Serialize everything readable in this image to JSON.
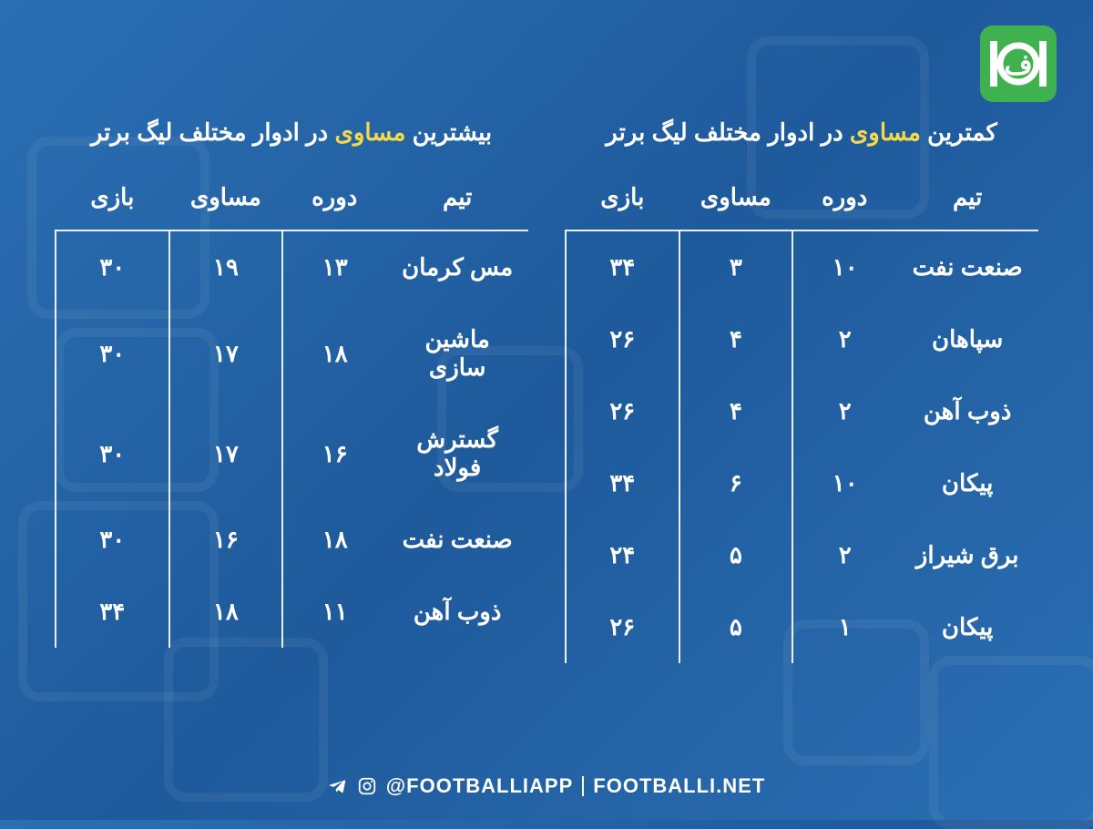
{
  "colors": {
    "background_start": "#2b6fb3",
    "background_end": "#1e5a9c",
    "text": "#ffffff",
    "highlight": "#f3d94a",
    "logo_bg": "#3fb24f",
    "divider": "rgba(255,255,255,0.9)"
  },
  "font": {
    "title_size_pt": 20,
    "header_size_pt": 20,
    "cell_size_pt": 20,
    "footer_size_pt": 16
  },
  "logo": {
    "name": "footballi-logo"
  },
  "left_table": {
    "title_pre": "بیشترین ",
    "title_highlight": "مساوی",
    "title_post": " در ادوار مختلف لیگ برتر",
    "columns": {
      "team": "تیم",
      "period": "دوره",
      "draws": "مساوی",
      "games": "بازی"
    },
    "rows": [
      {
        "team": "مس کرمان",
        "period": "۱۳",
        "draws": "۱۹",
        "games": "۳۰"
      },
      {
        "team": "ماشین سازی",
        "period": "۱۸",
        "draws": "۱۷",
        "games": "۳۰"
      },
      {
        "team": "گسترش فولاد",
        "period": "۱۶",
        "draws": "۱۷",
        "games": "۳۰"
      },
      {
        "team": "صنعت نفت",
        "period": "۱۸",
        "draws": "۱۶",
        "games": "۳۰"
      },
      {
        "team": "ذوب آهن",
        "period": "۱۱",
        "draws": "۱۸",
        "games": "۳۴"
      }
    ]
  },
  "right_table": {
    "title_pre": "کمترین ",
    "title_highlight": "مساوی",
    "title_post": " در ادوار مختلف لیگ برتر",
    "columns": {
      "team": "تیم",
      "period": "دوره",
      "draws": "مساوی",
      "games": "بازی"
    },
    "rows": [
      {
        "team": "صنعت نفت",
        "period": "۱۰",
        "draws": "۳",
        "games": "۳۴"
      },
      {
        "team": "سپاهان",
        "period": "۲",
        "draws": "۴",
        "games": "۲۶"
      },
      {
        "team": "ذوب آهن",
        "period": "۲",
        "draws": "۴",
        "games": "۲۶"
      },
      {
        "team": "پیکان",
        "period": "۱۰",
        "draws": "۶",
        "games": "۳۴"
      },
      {
        "team": "برق شیراز",
        "period": "۲",
        "draws": "۵",
        "games": "۲۴"
      },
      {
        "team": "پیکان",
        "period": "۱",
        "draws": "۵",
        "games": "۲۶"
      }
    ]
  },
  "footer": {
    "handle": "@FOOTBALLIAPP",
    "site": "FOOTBALLI.NET"
  }
}
